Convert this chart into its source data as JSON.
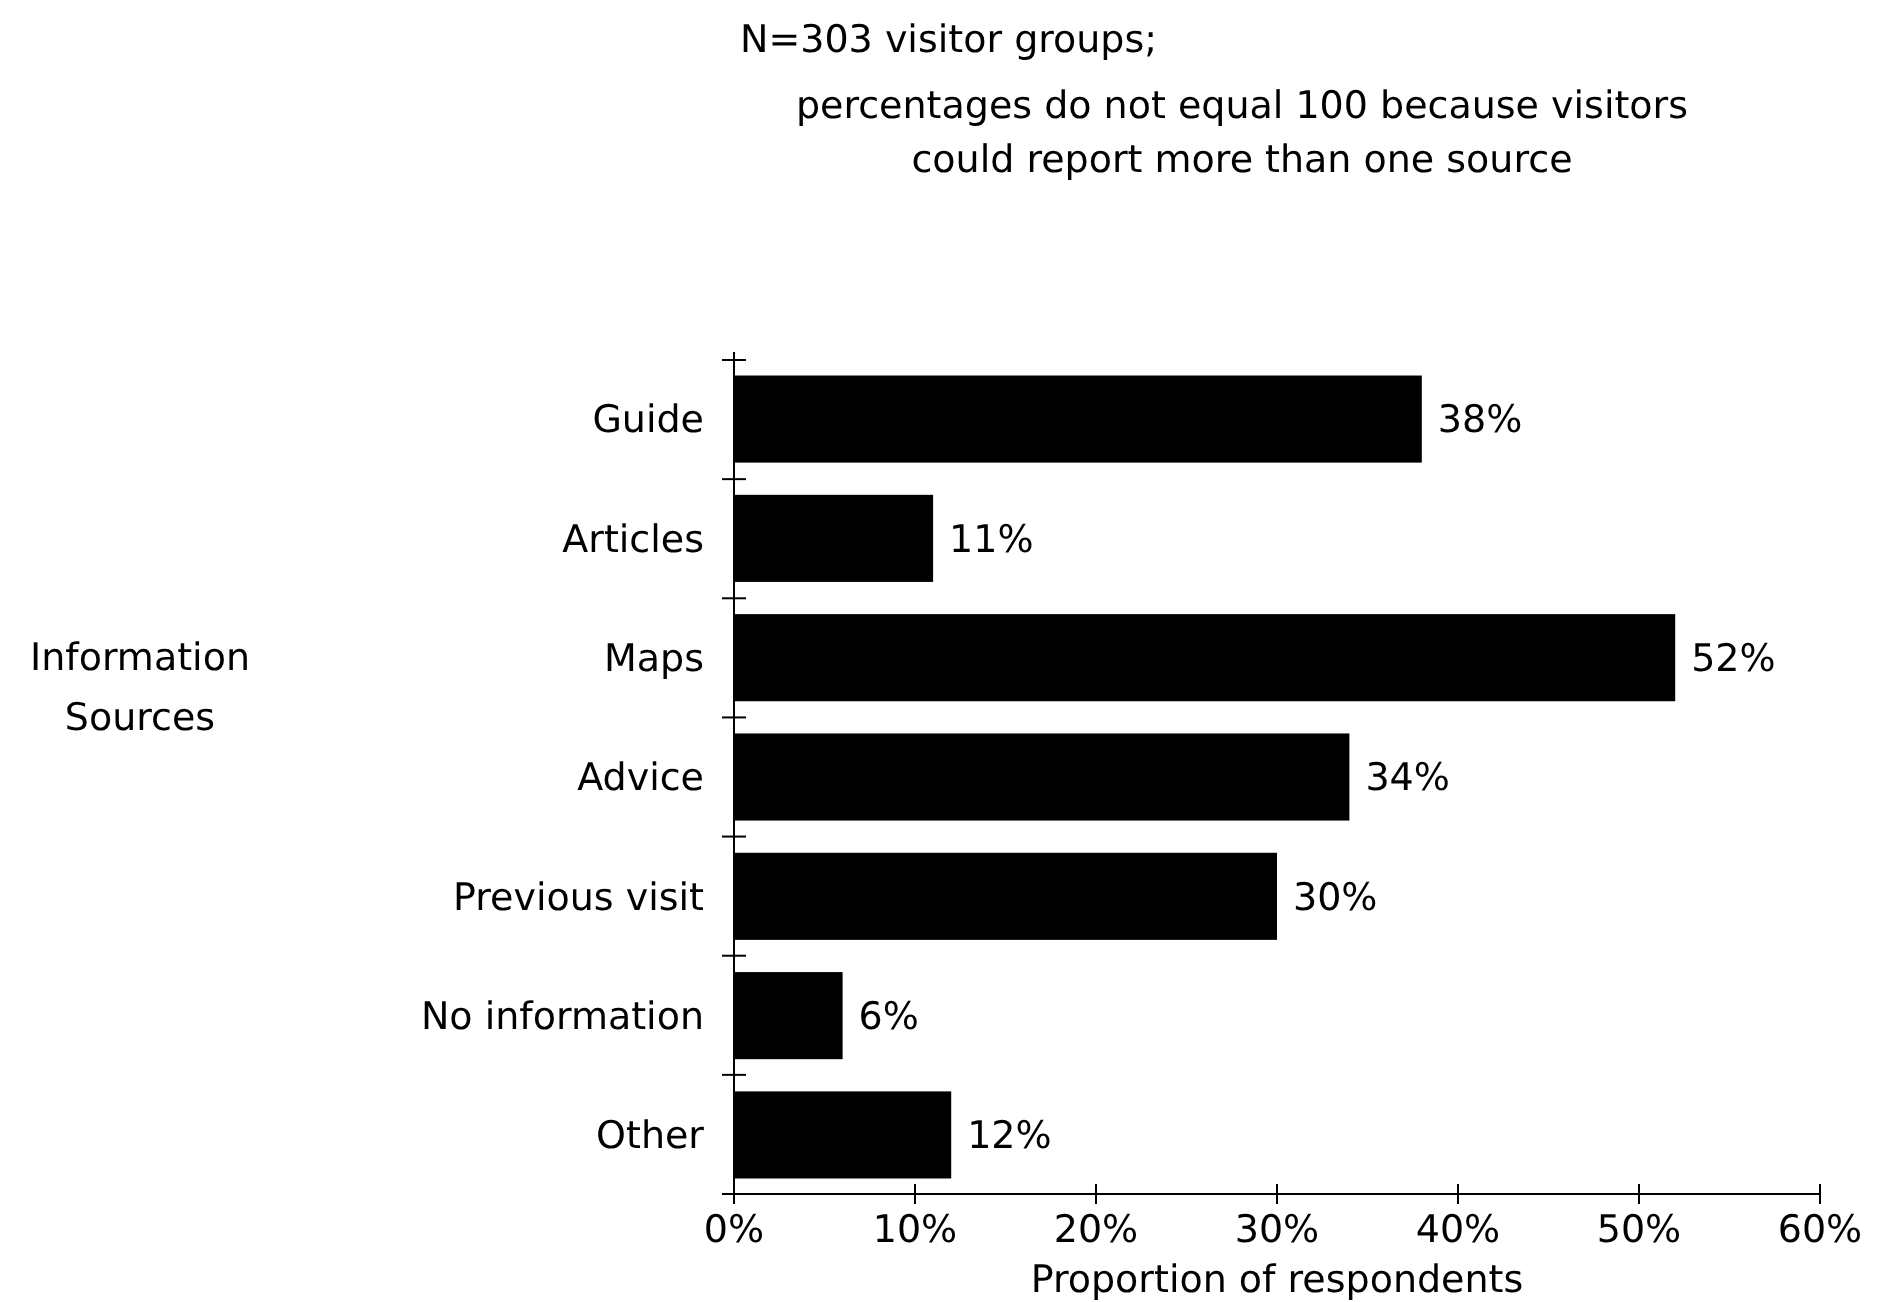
{
  "chart_data": {
    "type": "bar",
    "orientation": "horizontal",
    "title": "N=303 visitor groups;",
    "subtitle": "percentages do not equal 100 because visitors could report more than one source",
    "ylabel": "Information Sources",
    "xlabel": "Proportion of respondents",
    "categories": [
      "Guide",
      "Articles",
      "Maps",
      "Advice",
      "Previous visit",
      "No information",
      "Other"
    ],
    "values": [
      38,
      11,
      52,
      34,
      30,
      6,
      12
    ],
    "color": "#000000",
    "value_labels": [
      "38%",
      "11%",
      "52%",
      "34%",
      "30%",
      "6%",
      "12%"
    ],
    "xlim": [
      0,
      60
    ],
    "xticks": [
      {
        "value": 0,
        "label": "0%"
      },
      {
        "value": 10,
        "label": "10%"
      },
      {
        "value": 20,
        "label": "20%"
      },
      {
        "value": 30,
        "label": "30%"
      },
      {
        "value": 40,
        "label": "40%"
      },
      {
        "value": 50,
        "label": "50%"
      },
      {
        "value": 60,
        "label": "60%"
      }
    ],
    "grid": false
  }
}
